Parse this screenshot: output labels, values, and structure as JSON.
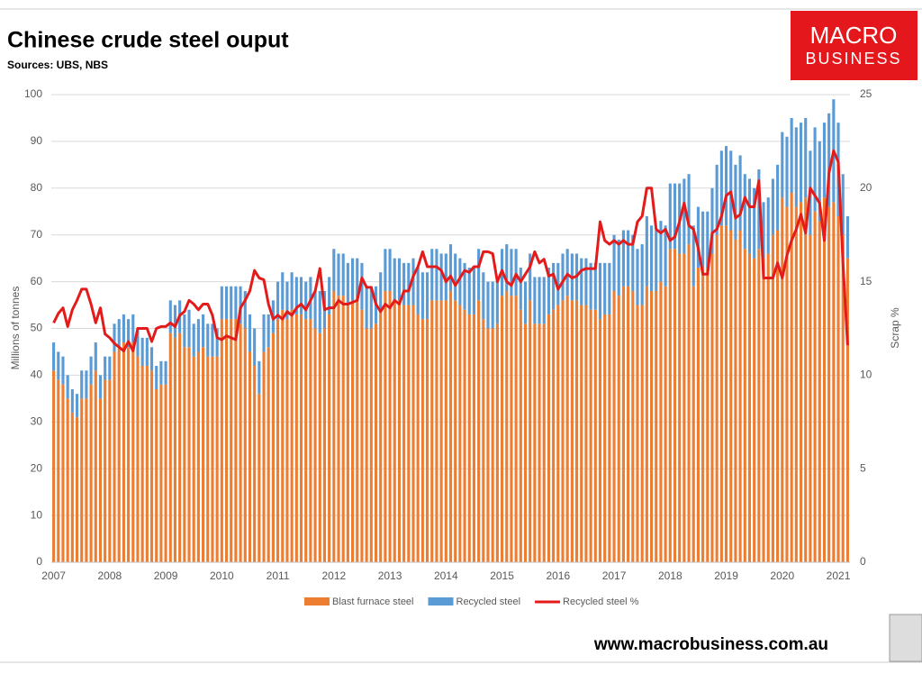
{
  "chart_data": {
    "type": "stacked-bar-line",
    "title": "Chinese crude steel ouput",
    "subtitle": "Sources: UBS, NBS",
    "y_label": "Millions of tonnes",
    "y2_label": "Scrap %",
    "categories": [
      "2007",
      null,
      null,
      null,
      null,
      null,
      null,
      null,
      null,
      null,
      null,
      null,
      "2008",
      null,
      null,
      null,
      null,
      null,
      null,
      null,
      null,
      null,
      null,
      null,
      "2009",
      null,
      null,
      null,
      null,
      null,
      null,
      null,
      null,
      null,
      null,
      null,
      "2010",
      null,
      null,
      null,
      null,
      null,
      null,
      null,
      null,
      null,
      null,
      null,
      "2011",
      null,
      null,
      null,
      null,
      null,
      null,
      null,
      null,
      null,
      null,
      null,
      "2012",
      null,
      null,
      null,
      null,
      null,
      null,
      null,
      null,
      null,
      null,
      null,
      "2013",
      null,
      null,
      null,
      null,
      null,
      null,
      null,
      null,
      null,
      null,
      null,
      "2014",
      null,
      null,
      null,
      null,
      null,
      null,
      null,
      null,
      null,
      null,
      null,
      "2015",
      null,
      null,
      null,
      null,
      null,
      null,
      null,
      null,
      null,
      null,
      null,
      "2016",
      null,
      null,
      null,
      null,
      null,
      null,
      null,
      null,
      null,
      null,
      null,
      "2017",
      null,
      null,
      null,
      null,
      null,
      null,
      null,
      null,
      null,
      null,
      null,
      "2018",
      null,
      null,
      null,
      null,
      null,
      null,
      null,
      null,
      null,
      null,
      null,
      "2019",
      null,
      null,
      null,
      null,
      null,
      null,
      null,
      null,
      null,
      null,
      null,
      "2020",
      null,
      null,
      null,
      null,
      null,
      null,
      null,
      null,
      null,
      null,
      null,
      "2021",
      null,
      null
    ],
    "series": [
      {
        "name": "Blast furnace steel",
        "color": "#ED7D31",
        "kind": "bar",
        "values": [
          41,
          39,
          38,
          35,
          32,
          31,
          35,
          35,
          38,
          41,
          35,
          39,
          39,
          45,
          46,
          47,
          46,
          47,
          44,
          42,
          42,
          41,
          37,
          38,
          38,
          49,
          48,
          49,
          46,
          46,
          44,
          45,
          46,
          44,
          44,
          44,
          52,
          52,
          52,
          52,
          51,
          50,
          45,
          42,
          36,
          45,
          46,
          49,
          52,
          54,
          52,
          54,
          53,
          53,
          52,
          52,
          50,
          49,
          50,
          53,
          58,
          57,
          57,
          55,
          56,
          56,
          54,
          50,
          50,
          51,
          54,
          58,
          58,
          56,
          56,
          55,
          55,
          55,
          53,
          52,
          52,
          56,
          56,
          56,
          56,
          58,
          56,
          55,
          54,
          53,
          53,
          56,
          52,
          50,
          50,
          51,
          57,
          58,
          57,
          57,
          54,
          51,
          56,
          51,
          51,
          51,
          53,
          54,
          55,
          56,
          57,
          56,
          56,
          55,
          55,
          54,
          54,
          52,
          53,
          53,
          58,
          57,
          59,
          59,
          58,
          55,
          55,
          59,
          58,
          58,
          60,
          59,
          67,
          67,
          66,
          66,
          68,
          59,
          63,
          63,
          63,
          66,
          70,
          72,
          72,
          71,
          69,
          71,
          67,
          66,
          65,
          67,
          65,
          66,
          70,
          71,
          78,
          76,
          79,
          76,
          77,
          78,
          70,
          75,
          73,
          78,
          76,
          77,
          74,
          70,
          65
        ]
      },
      {
        "name": "Recycled steel",
        "color": "#5B9BD5",
        "kind": "bar",
        "values": [
          6,
          6,
          6,
          5,
          5,
          5,
          6,
          6,
          6,
          6,
          5,
          5,
          5,
          6,
          6,
          6,
          6,
          6,
          6,
          6,
          6,
          5,
          5,
          5,
          5,
          7,
          7,
          7,
          7,
          8,
          7,
          7,
          7,
          7,
          7,
          6,
          7,
          7,
          7,
          7,
          8,
          8,
          8,
          8,
          7,
          8,
          7,
          7,
          8,
          8,
          8,
          8,
          8,
          8,
          8,
          9,
          8,
          9,
          8,
          8,
          9,
          9,
          9,
          9,
          9,
          9,
          10,
          9,
          9,
          8,
          8,
          9,
          9,
          9,
          9,
          9,
          9,
          10,
          10,
          10,
          10,
          11,
          11,
          10,
          10,
          10,
          10,
          10,
          10,
          10,
          10,
          11,
          10,
          10,
          10,
          9,
          10,
          10,
          10,
          10,
          9,
          9,
          10,
          10,
          10,
          10,
          10,
          10,
          9,
          10,
          10,
          10,
          10,
          10,
          10,
          10,
          10,
          12,
          11,
          11,
          12,
          12,
          12,
          12,
          12,
          12,
          13,
          15,
          14,
          13,
          13,
          13,
          14,
          14,
          15,
          16,
          15,
          13,
          13,
          12,
          12,
          14,
          15,
          16,
          17,
          17,
          16,
          16,
          16,
          16,
          15,
          17,
          12,
          12,
          12,
          14,
          14,
          15,
          16,
          17,
          17,
          17,
          18,
          18,
          17,
          16,
          20,
          22,
          20,
          13,
          9
        ]
      },
      {
        "name": "Recycled steel %",
        "color": "#E31B1B",
        "kind": "line",
        "axis": "y2",
        "values": [
          12.8,
          13.3,
          13.6,
          12.6,
          13.5,
          14,
          14.6,
          14.6,
          13.8,
          12.8,
          13.6,
          12.2,
          12,
          11.7,
          11.5,
          11.3,
          11.8,
          11.3,
          12.5,
          12.5,
          12.5,
          11.8,
          12.5,
          12.6,
          12.6,
          12.8,
          12.6,
          13.2,
          13.4,
          14,
          13.8,
          13.5,
          13.8,
          13.8,
          13.2,
          12,
          11.9,
          12.1,
          12,
          11.9,
          13.6,
          14,
          14.5,
          15.6,
          15.2,
          15.1,
          13.8,
          13,
          13.2,
          13,
          13.4,
          13.2,
          13.6,
          13.8,
          13.5,
          14,
          14.5,
          15.7,
          13.5,
          13.6,
          13.6,
          14,
          13.8,
          13.8,
          13.9,
          14,
          15.2,
          14.7,
          14.7,
          13.8,
          13.4,
          13.8,
          13.6,
          14,
          13.8,
          14.5,
          14.5,
          15.3,
          15.8,
          16.6,
          15.8,
          15.8,
          15.8,
          15.6,
          15,
          15.3,
          14.8,
          15.2,
          15.6,
          15.5,
          15.8,
          15.8,
          16.6,
          16.6,
          16.5,
          15,
          15.6,
          15,
          14.8,
          15.4,
          15,
          15.4,
          15.8,
          16.6,
          16,
          16.2,
          15.3,
          15.4,
          14.6,
          15,
          15.4,
          15.2,
          15.3,
          15.6,
          15.7,
          15.7,
          15.7,
          18.2,
          17.2,
          17,
          17.2,
          17,
          17.2,
          17,
          17,
          18.2,
          18.5,
          20,
          20,
          17.8,
          17.6,
          17.8,
          17.2,
          17.4,
          18.2,
          19.2,
          18,
          17.8,
          16.8,
          15.4,
          15.4,
          17.6,
          17.8,
          18.5,
          19.6,
          19.8,
          18.4,
          18.6,
          19.5,
          19,
          19,
          20.4,
          15.2,
          15.2,
          15.2,
          16,
          15.2,
          16.4,
          17.2,
          17.8,
          18.6,
          17.6,
          20,
          19.6,
          19.2,
          17.2,
          20.8,
          22,
          21.4,
          16,
          11.6
        ]
      }
    ],
    "ylim": [
      0,
      100
    ],
    "yticks": [
      0,
      10,
      20,
      30,
      40,
      50,
      60,
      70,
      80,
      90,
      100
    ],
    "y2lim": [
      0,
      25
    ],
    "y2ticks": [
      0,
      5,
      10,
      15,
      20,
      25
    ],
    "grid": true,
    "legend": "bottom"
  },
  "logo": {
    "line1": "MACRO",
    "line2": "BUSINESS"
  },
  "footer_url": "www.macrobusiness.com.au"
}
